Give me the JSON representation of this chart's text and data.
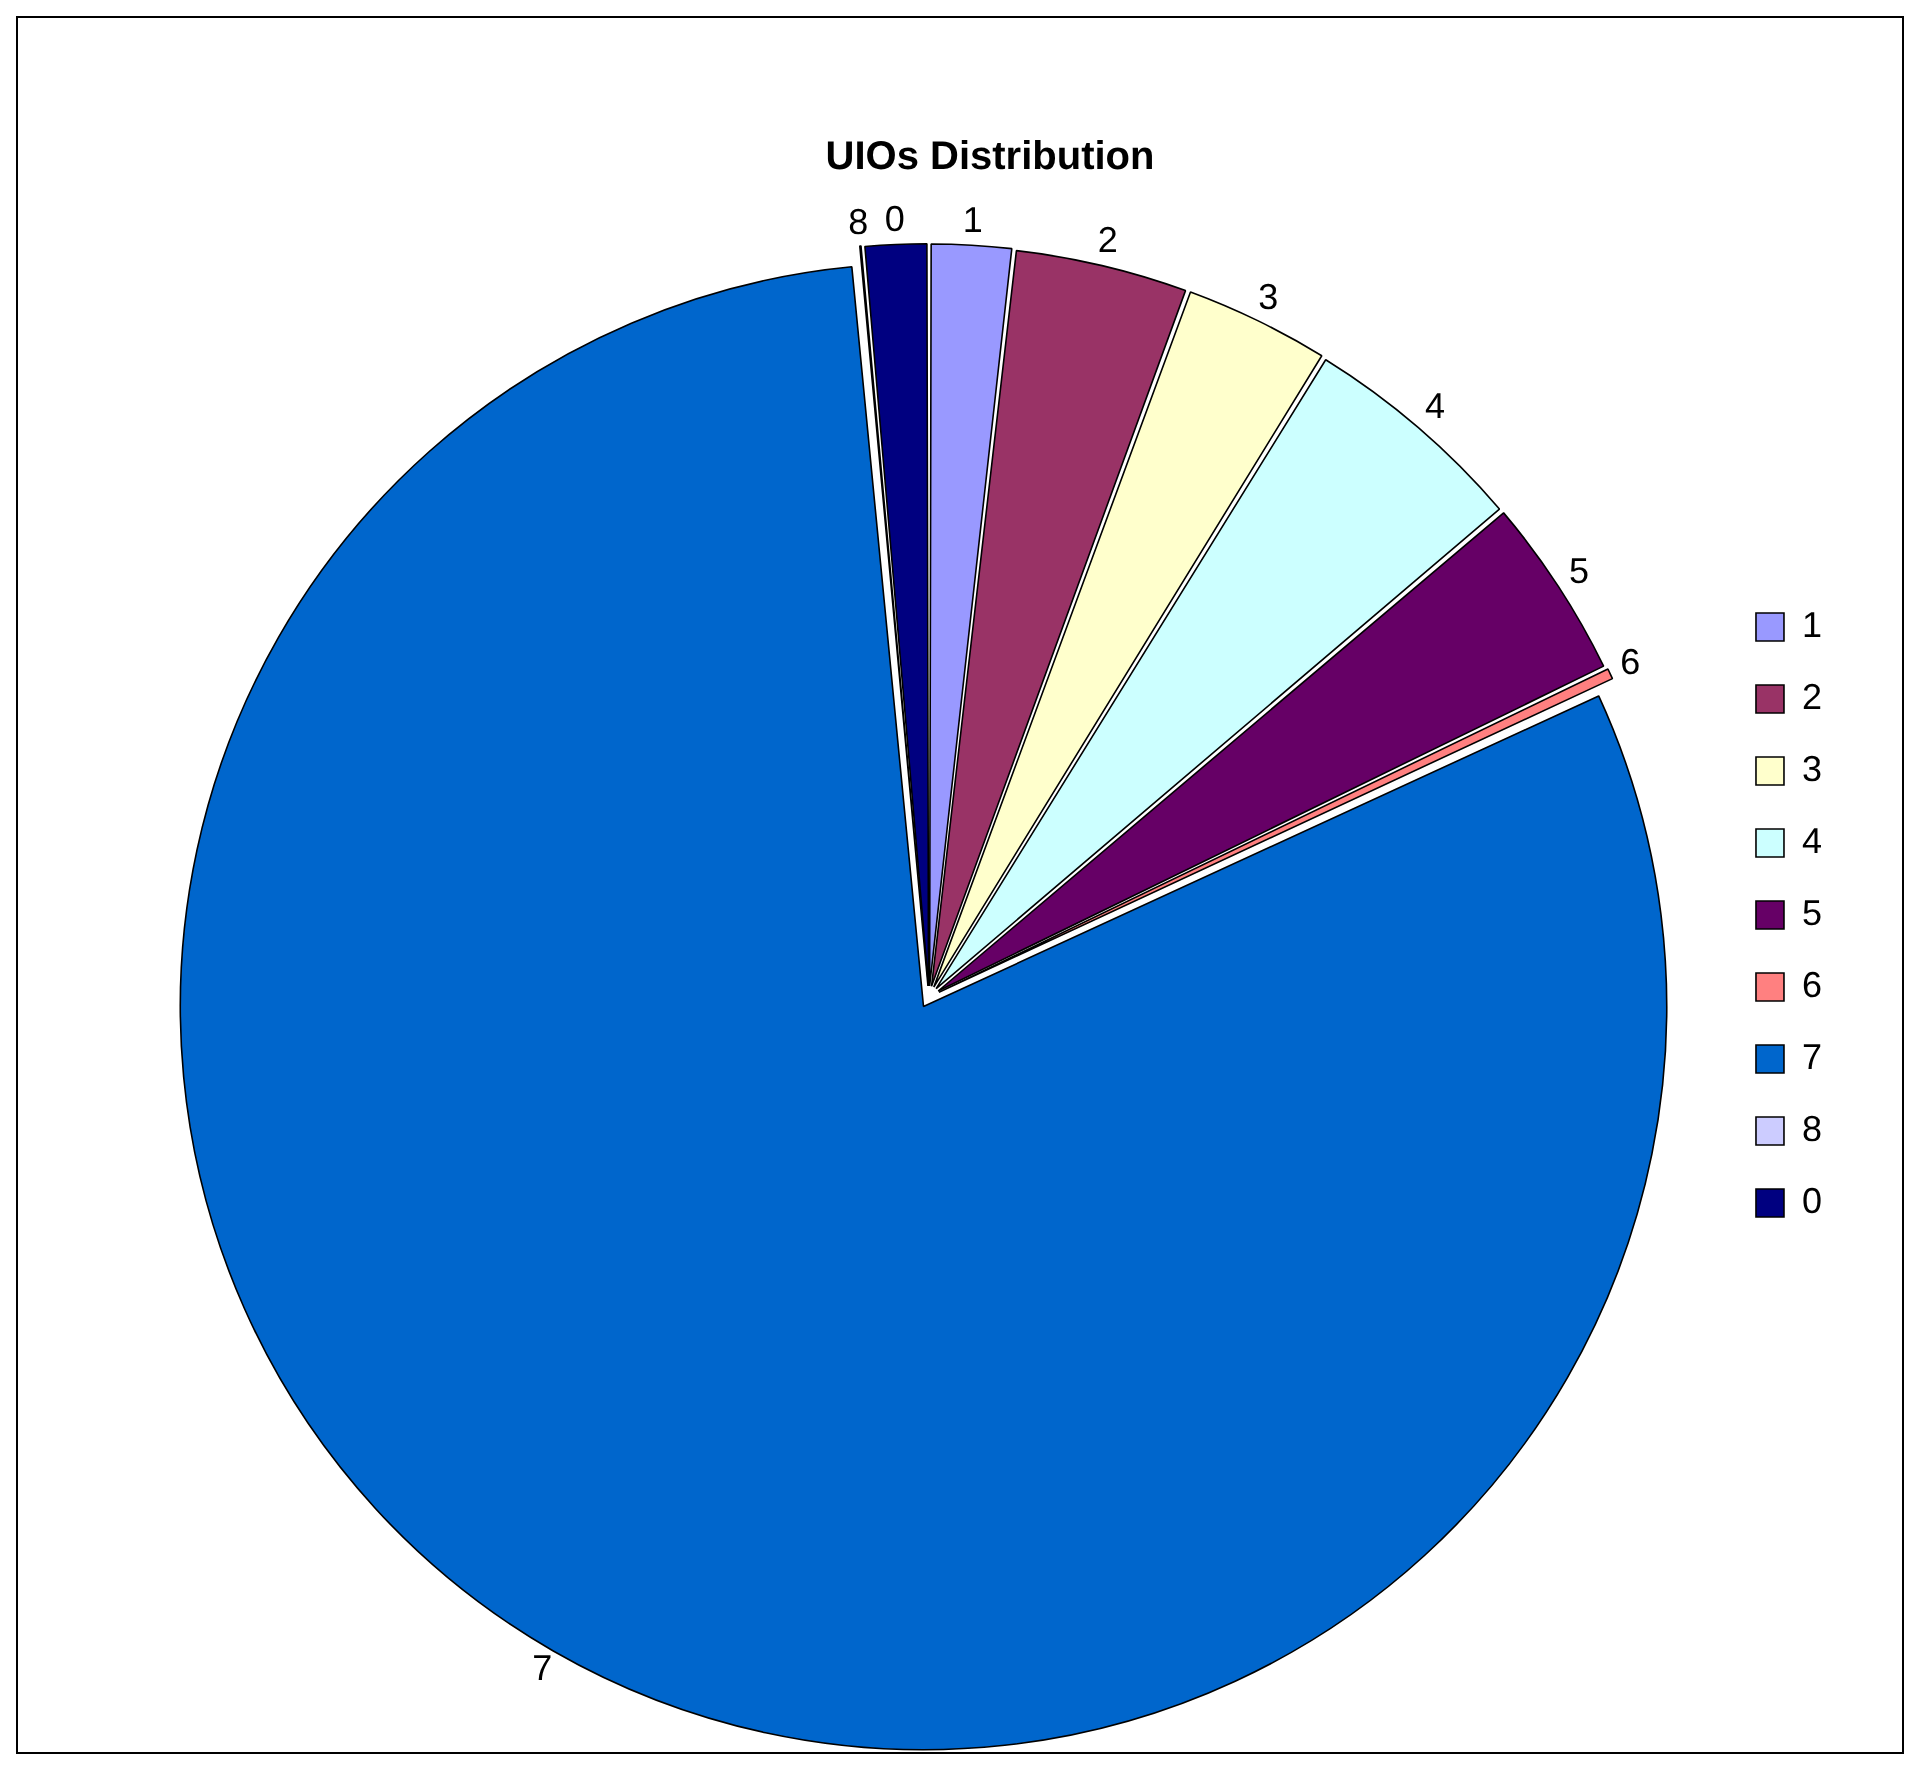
{
  "chart_data": {
    "type": "pie",
    "title": "UIOs Distribution",
    "categories": [
      "1",
      "2",
      "3",
      "4",
      "5",
      "6",
      "7",
      "8",
      "0"
    ],
    "values": [
      1.8,
      3.8,
      3.2,
      5.0,
      4.0,
      0.3,
      80.4,
      0.1,
      1.4
    ],
    "colors": [
      "#9999ff",
      "#993366",
      "#ffffcc",
      "#ccffff",
      "#660066",
      "#ff8080",
      "#0066cc",
      "#ccccff",
      "#000080"
    ],
    "legend": "right"
  }
}
